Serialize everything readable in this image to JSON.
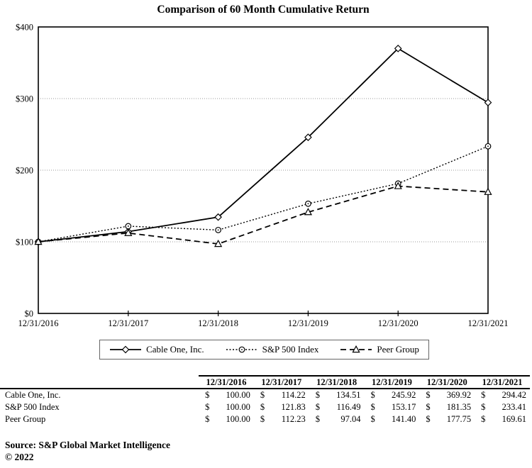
{
  "title": "Comparison of 60 Month Cumulative Return",
  "chart_data": {
    "type": "line",
    "title": "Comparison of 60 Month Cumulative Return",
    "categories": [
      "12/31/2016",
      "12/31/2017",
      "12/31/2018",
      "12/31/2019",
      "12/31/2020",
      "12/31/2021"
    ],
    "series": [
      {
        "name": "Cable One, Inc.",
        "line_style": "solid",
        "marker": "diamond",
        "values": [
          100.0,
          114.22,
          134.51,
          245.92,
          369.92,
          294.42
        ]
      },
      {
        "name": "S&P 500 Index",
        "line_style": "dotted",
        "marker": "circle",
        "values": [
          100.0,
          121.83,
          116.49,
          153.17,
          181.35,
          233.41
        ]
      },
      {
        "name": "Peer Group",
        "line_style": "dashed",
        "marker": "triangle",
        "values": [
          100.0,
          112.23,
          97.04,
          141.4,
          177.75,
          169.61
        ]
      }
    ],
    "ylim": [
      0,
      400
    ],
    "yticks": [
      0,
      100,
      200,
      300,
      400
    ],
    "ytick_labels": [
      "$0",
      "$100",
      "$200",
      "$300",
      "$400"
    ],
    "grid": "horizontal dotted gridlines at 100, 200, 300",
    "legend_position": "bottom-center",
    "colors": {
      "line": "#000000",
      "grid": "#999999",
      "background": "#ffffff"
    }
  },
  "table": {
    "columns": [
      "12/31/2016",
      "12/31/2017",
      "12/31/2018",
      "12/31/2019",
      "12/31/2020",
      "12/31/2021"
    ],
    "currency_symbol": "$",
    "rows": [
      {
        "label": "Cable One, Inc.",
        "values": [
          "100.00",
          "114.22",
          "134.51",
          "245.92",
          "369.92",
          "294.42"
        ]
      },
      {
        "label": "S&P 500 Index",
        "values": [
          "100.00",
          "121.83",
          "116.49",
          "153.17",
          "181.35",
          "233.41"
        ]
      },
      {
        "label": "Peer Group",
        "values": [
          "100.00",
          "112.23",
          "97.04",
          "141.40",
          "177.75",
          "169.61"
        ]
      }
    ]
  },
  "footer": {
    "source": "Source:  S&P Global Market Intelligence",
    "copyright": "© 2022"
  }
}
